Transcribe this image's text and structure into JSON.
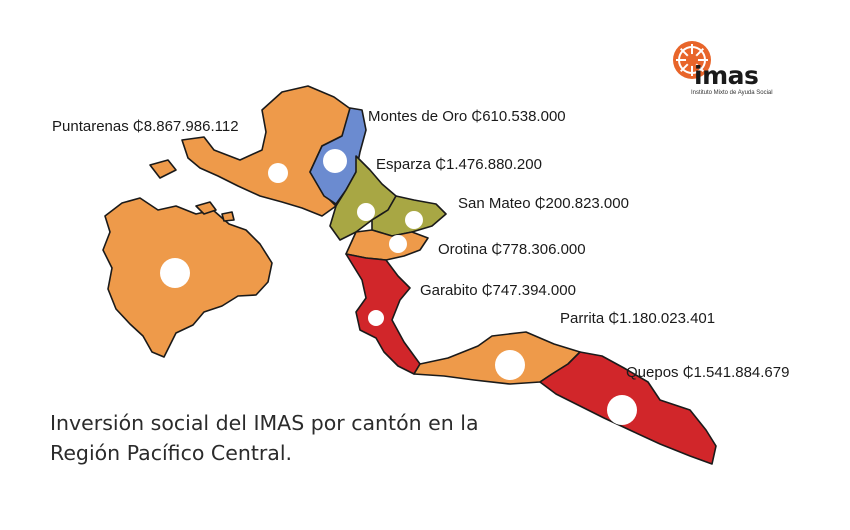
{
  "caption": {
    "line1": "Inversión social del IMAS por cantón en la",
    "line2": "Región Pacífico Central."
  },
  "logo": {
    "wordmark": "imas",
    "subtitle": "Instituto Mixto de Ayuda Social",
    "accent_color": "#e8652a"
  },
  "colors": {
    "orange": "#ee9a4a",
    "blue": "#6b8bd0",
    "olive": "#a8a744",
    "red": "#d1262a",
    "outline": "#1a1a1a",
    "marker": "#ffffff"
  },
  "cantons": [
    {
      "name": "Puntarenas",
      "amount": "₵8.867.986.112",
      "color": "orange"
    },
    {
      "name": "Montes de Oro",
      "amount": "₵610.538.000",
      "color": "blue"
    },
    {
      "name": "Esparza",
      "amount": "₵1.476.880.200",
      "color": "olive"
    },
    {
      "name": "San Mateo",
      "amount": "₵200.823.000",
      "color": "olive"
    },
    {
      "name": "Orotina",
      "amount": "₵778.306.000",
      "color": "orange"
    },
    {
      "name": "Garabito",
      "amount": "₵747.394.000",
      "color": "red"
    },
    {
      "name": "Parrita",
      "amount": "₵1.180.023.401",
      "color": "orange"
    },
    {
      "name": "Quepos",
      "amount": "₵1.541.884.679",
      "color": "red"
    }
  ],
  "labels": {
    "puntarenas": "Puntarenas ₵8.867.986.112",
    "montes_de_oro": "Montes de Oro ₵610.538.000",
    "esparza": "Esparza  ₵1.476.880.200",
    "san_mateo": "San Mateo ₵200.823.000",
    "orotina": "Orotina ₵778.306.000",
    "garabito": "Garabito ₵747.394.000",
    "parrita": "Parrita ₵1.180.023.401",
    "quepos": "Quepos ₵1.541.884.679"
  }
}
